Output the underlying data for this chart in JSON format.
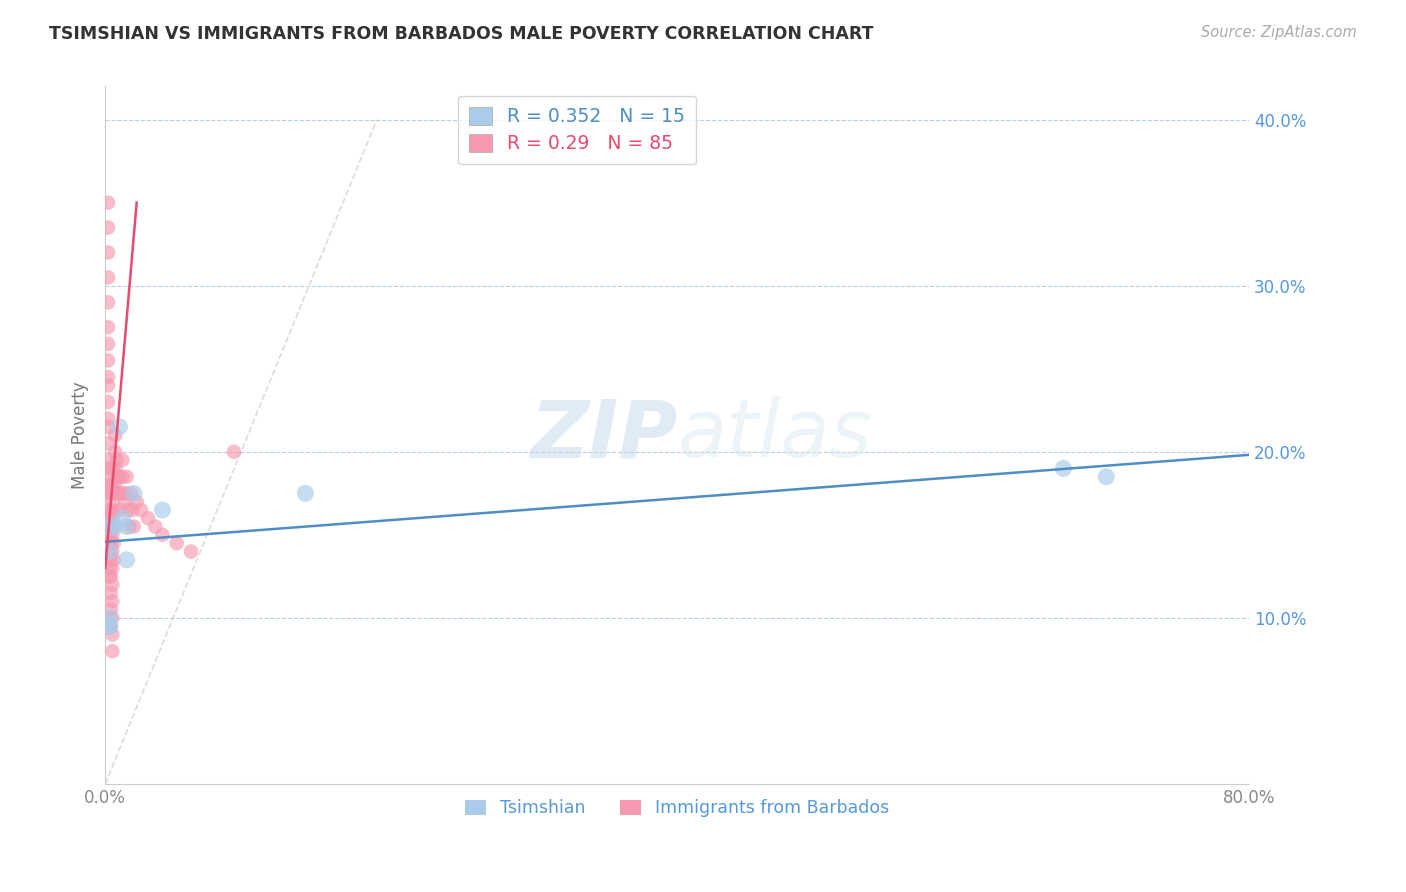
{
  "title": "TSIMSHIAN VS IMMIGRANTS FROM BARBADOS MALE POVERTY CORRELATION CHART",
  "source": "Source: ZipAtlas.com",
  "ylabel": "Male Poverty",
  "watermark_zip": "ZIP",
  "watermark_atlas": "atlas",
  "tsimshian_color": "#A8CCEA",
  "barbados_color": "#F599B0",
  "tsimshian_line_color": "#4D8EC4",
  "barbados_line_color": "#E84B6E",
  "diagonal_color": "#CCCCCC",
  "R_tsimshian": 0.352,
  "N_tsimshian": 15,
  "R_barbados": 0.29,
  "N_barbados": 85,
  "xmin": 0.0,
  "xmax": 0.8,
  "ymin": 0.0,
  "ymax": 0.42,
  "tsimshian_x": [
    0.003,
    0.003,
    0.003,
    0.003,
    0.003,
    0.007,
    0.01,
    0.012,
    0.015,
    0.015,
    0.02,
    0.04,
    0.14,
    0.67,
    0.7
  ],
  "tsimshian_y": [
    0.14,
    0.155,
    0.095,
    0.095,
    0.1,
    0.155,
    0.215,
    0.16,
    0.155,
    0.135,
    0.175,
    0.165,
    0.175,
    0.19,
    0.185
  ],
  "barbados_x": [
    0.002,
    0.002,
    0.002,
    0.002,
    0.002,
    0.002,
    0.002,
    0.002,
    0.002,
    0.002,
    0.002,
    0.002,
    0.002,
    0.002,
    0.002,
    0.003,
    0.003,
    0.003,
    0.003,
    0.003,
    0.003,
    0.003,
    0.003,
    0.003,
    0.003,
    0.003,
    0.003,
    0.003,
    0.004,
    0.004,
    0.004,
    0.004,
    0.004,
    0.004,
    0.004,
    0.004,
    0.004,
    0.005,
    0.005,
    0.005,
    0.005,
    0.005,
    0.005,
    0.005,
    0.005,
    0.005,
    0.005,
    0.005,
    0.005,
    0.006,
    0.006,
    0.006,
    0.006,
    0.006,
    0.007,
    0.007,
    0.007,
    0.007,
    0.008,
    0.008,
    0.008,
    0.009,
    0.009,
    0.01,
    0.01,
    0.01,
    0.012,
    0.012,
    0.013,
    0.014,
    0.015,
    0.015,
    0.016,
    0.017,
    0.018,
    0.019,
    0.02,
    0.022,
    0.025,
    0.03,
    0.035,
    0.04,
    0.05,
    0.06,
    0.09
  ],
  "barbados_y": [
    0.35,
    0.335,
    0.32,
    0.305,
    0.29,
    0.275,
    0.265,
    0.255,
    0.245,
    0.24,
    0.23,
    0.22,
    0.215,
    0.205,
    0.195,
    0.19,
    0.185,
    0.18,
    0.175,
    0.165,
    0.16,
    0.155,
    0.15,
    0.145,
    0.14,
    0.135,
    0.13,
    0.125,
    0.175,
    0.165,
    0.155,
    0.145,
    0.135,
    0.125,
    0.115,
    0.105,
    0.095,
    0.19,
    0.18,
    0.17,
    0.16,
    0.15,
    0.14,
    0.13,
    0.12,
    0.11,
    0.1,
    0.09,
    0.08,
    0.175,
    0.165,
    0.155,
    0.145,
    0.135,
    0.21,
    0.2,
    0.19,
    0.18,
    0.195,
    0.185,
    0.175,
    0.185,
    0.175,
    0.185,
    0.175,
    0.165,
    0.195,
    0.185,
    0.175,
    0.17,
    0.185,
    0.175,
    0.165,
    0.155,
    0.175,
    0.165,
    0.155,
    0.17,
    0.165,
    0.16,
    0.155,
    0.15,
    0.145,
    0.14,
    0.2
  ]
}
